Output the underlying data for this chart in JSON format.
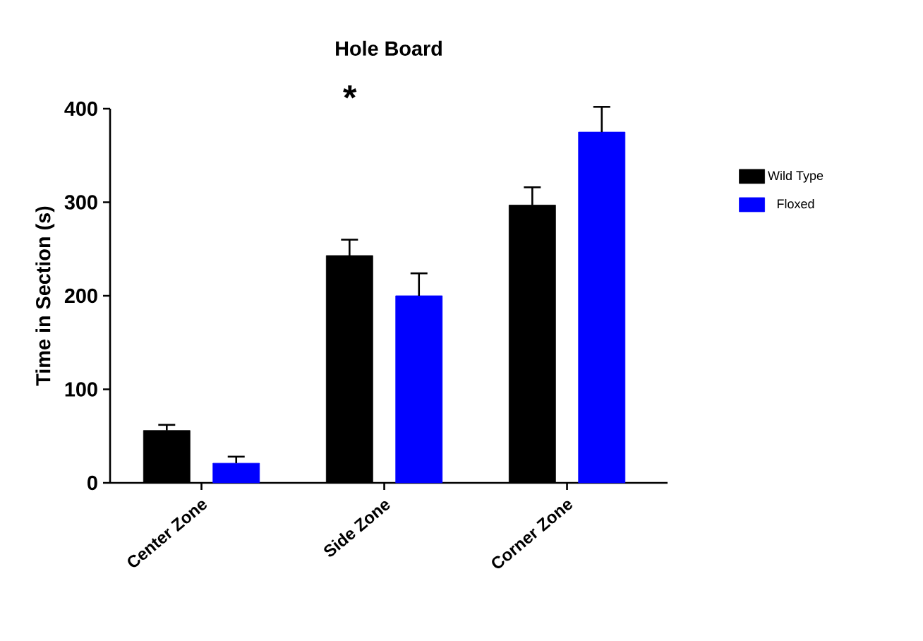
{
  "chart_data": {
    "type": "bar",
    "title": "Hole Board",
    "ylabel": "Time in Section (s)",
    "categories": [
      "Center Zone",
      "Side Zone",
      "Corner Zone"
    ],
    "series": [
      {
        "name": "Wild Type",
        "color": "#000000",
        "values": [
          56,
          243,
          297
        ],
        "errors": [
          [
            56,
            62
          ],
          [
            243,
            260
          ],
          [
            297,
            316
          ]
        ]
      },
      {
        "name": "Floxed",
        "color": "#0000ff",
        "values": [
          21,
          200,
          375
        ],
        "errors": [
          [
            21,
            28
          ],
          [
            200,
            224
          ],
          [
            375,
            402
          ]
        ]
      }
    ],
    "ylim": [
      0,
      400
    ],
    "yticks": [
      0,
      100,
      200,
      300,
      400
    ],
    "annotations": [
      "*"
    ],
    "legend": "right"
  }
}
